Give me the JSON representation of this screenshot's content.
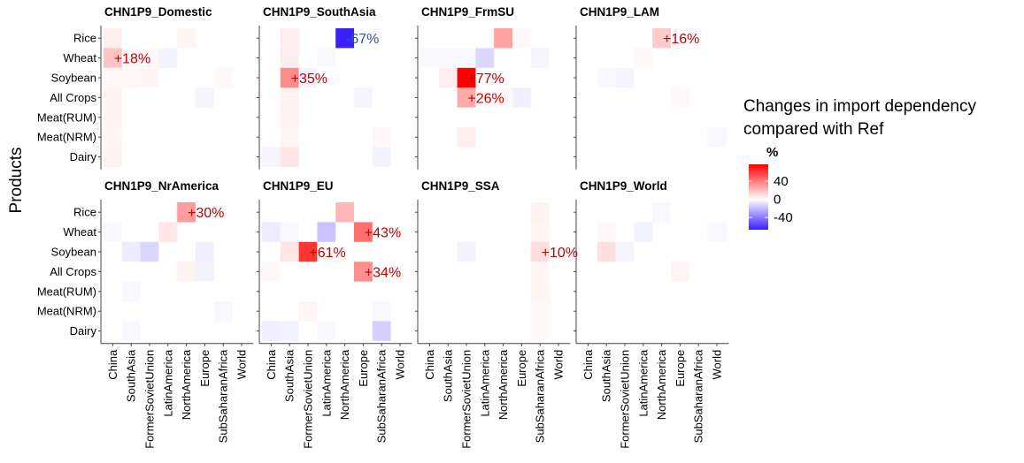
{
  "chart_data": {
    "type": "heatmap",
    "y_axis_title": "Products",
    "products": [
      "Rice",
      "Wheat",
      "Soybean",
      "All Crops",
      "Meat(RUM)",
      "Meat(NRM)",
      "Dairy"
    ],
    "regions": [
      "China",
      "SouthAsia",
      "FormerSovietUnion",
      "LatinAmerica",
      "NorthAmerica",
      "Europe",
      "SubSaharanAfrica",
      "World"
    ],
    "legend": {
      "title_line1": "Changes in import dependency",
      "title_line2": "compared with Ref",
      "unit": "%",
      "ticks": [
        "40",
        "0",
        "-40"
      ],
      "tick_values": [
        40,
        0,
        -40
      ],
      "range": [
        -67,
        77
      ],
      "high_color": "#ff0000",
      "mid_color": "#ffffff",
      "low_color": "#3a1fff"
    },
    "label_colors": {
      "positive": "#c00000",
      "negative": "#2f55a4"
    },
    "panels": [
      {
        "title": "CHN1P9_Domestic",
        "values": [
          [
            5,
            0,
            0,
            0,
            3,
            0,
            0,
            0
          ],
          [
            18,
            2,
            2,
            -4,
            0,
            0,
            0,
            0
          ],
          [
            2,
            2,
            3,
            0,
            0,
            0,
            2,
            0
          ],
          [
            4,
            0,
            0,
            0,
            0,
            -3,
            0,
            0
          ],
          [
            4,
            0,
            0,
            0,
            0,
            0,
            0,
            0
          ],
          [
            3,
            0,
            0,
            0,
            0,
            0,
            0,
            0
          ],
          [
            4,
            0,
            0,
            0,
            0,
            0,
            0,
            0
          ]
        ],
        "labels": [
          {
            "product": "Wheat",
            "region": "China",
            "text": "+18%"
          }
        ]
      },
      {
        "title": "CHN1P9_SouthAsia",
        "values": [
          [
            0,
            5,
            0,
            0,
            -67,
            0,
            0,
            0
          ],
          [
            0,
            5,
            0,
            -2,
            0,
            0,
            0,
            0
          ],
          [
            0,
            35,
            -4,
            0,
            0,
            0,
            0,
            0
          ],
          [
            0,
            4,
            0,
            0,
            0,
            -3,
            0,
            0
          ],
          [
            0,
            4,
            0,
            0,
            0,
            0,
            0,
            0
          ],
          [
            0,
            3,
            0,
            0,
            0,
            0,
            2,
            0
          ],
          [
            -3,
            8,
            0,
            0,
            0,
            0,
            -4,
            0
          ]
        ],
        "labels": [
          {
            "product": "Rice",
            "region": "NorthAmerica",
            "text": "-67%"
          },
          {
            "product": "Soybean",
            "region": "SouthAsia",
            "text": "+35%"
          }
        ]
      },
      {
        "title": "CHN1P9_FrmSU",
        "values": [
          [
            0,
            0,
            0,
            0,
            28,
            2,
            0,
            0
          ],
          [
            -2,
            -2,
            -2,
            -12,
            0,
            0,
            -3,
            0
          ],
          [
            0,
            5,
            77,
            0,
            0,
            0,
            0,
            0
          ],
          [
            0,
            0,
            26,
            0,
            2,
            -5,
            0,
            0
          ],
          [
            0,
            0,
            0,
            0,
            0,
            0,
            0,
            0
          ],
          [
            0,
            0,
            5,
            0,
            0,
            0,
            0,
            0
          ],
          [
            0,
            0,
            0,
            0,
            0,
            0,
            0,
            0
          ]
        ],
        "labels": [
          {
            "product": "Soybean",
            "region": "FormerSovietUnion",
            "text": "+77%"
          },
          {
            "product": "All Crops",
            "region": "FormerSovietUnion",
            "text": "+26%"
          }
        ]
      },
      {
        "title": "CHN1P9_LAM",
        "values": [
          [
            0,
            0,
            0,
            0,
            16,
            0,
            0,
            0
          ],
          [
            0,
            0,
            0,
            2,
            0,
            0,
            0,
            0
          ],
          [
            0,
            -2,
            -3,
            0,
            0,
            0,
            0,
            0
          ],
          [
            0,
            0,
            0,
            0,
            0,
            2,
            0,
            0
          ],
          [
            0,
            0,
            0,
            0,
            0,
            0,
            0,
            0
          ],
          [
            0,
            0,
            0,
            0,
            0,
            0,
            0,
            -2
          ],
          [
            0,
            0,
            0,
            0,
            0,
            0,
            0,
            0
          ]
        ],
        "labels": [
          {
            "product": "Rice",
            "region": "NorthAmerica",
            "text": "+16%"
          }
        ]
      },
      {
        "title": "CHN1P9_NrAmerica",
        "values": [
          [
            0,
            0,
            0,
            0,
            30,
            0,
            0,
            0
          ],
          [
            -2,
            0,
            0,
            8,
            0,
            0,
            0,
            0
          ],
          [
            0,
            -6,
            -12,
            0,
            0,
            -5,
            0,
            0
          ],
          [
            0,
            0,
            0,
            0,
            4,
            -4,
            0,
            0
          ],
          [
            0,
            -2,
            0,
            0,
            0,
            0,
            0,
            0
          ],
          [
            0,
            0,
            0,
            0,
            0,
            0,
            -2,
            0
          ],
          [
            0,
            -2,
            0,
            0,
            0,
            0,
            0,
            0
          ]
        ],
        "labels": [
          {
            "product": "Rice",
            "region": "NorthAmerica",
            "text": "+30%"
          }
        ]
      },
      {
        "title": "CHN1P9_EU",
        "values": [
          [
            0,
            0,
            0,
            0,
            22,
            0,
            0,
            0
          ],
          [
            -6,
            -2,
            0,
            -18,
            0,
            43,
            0,
            0
          ],
          [
            0,
            8,
            61,
            0,
            0,
            0,
            0,
            0
          ],
          [
            2,
            0,
            0,
            0,
            0,
            34,
            0,
            0
          ],
          [
            0,
            0,
            0,
            0,
            0,
            0,
            0,
            0
          ],
          [
            0,
            0,
            3,
            0,
            0,
            0,
            -2,
            0
          ],
          [
            -5,
            -4,
            0,
            -2,
            0,
            0,
            -14,
            0
          ]
        ],
        "labels": [
          {
            "product": "Wheat",
            "region": "Europe",
            "text": "+43%"
          },
          {
            "product": "Soybean",
            "region": "FormerSovietUnion",
            "text": "+61%"
          },
          {
            "product": "All Crops",
            "region": "Europe",
            "text": "+34%"
          }
        ]
      },
      {
        "title": "CHN1P9_SSA",
        "values": [
          [
            0,
            0,
            0,
            0,
            0,
            0,
            4,
            0
          ],
          [
            0,
            0,
            0,
            0,
            0,
            0,
            3,
            0
          ],
          [
            0,
            0,
            -4,
            0,
            0,
            0,
            10,
            0
          ],
          [
            0,
            0,
            0,
            0,
            0,
            0,
            3,
            0
          ],
          [
            0,
            0,
            0,
            0,
            0,
            0,
            3,
            0
          ],
          [
            0,
            0,
            0,
            0,
            0,
            0,
            2,
            0
          ],
          [
            0,
            0,
            0,
            0,
            0,
            0,
            2,
            0
          ]
        ],
        "labels": [
          {
            "product": "Soybean",
            "region": "SubSaharanAfrica",
            "text": "+10%"
          }
        ]
      },
      {
        "title": "CHN1P9_World",
        "values": [
          [
            0,
            0,
            0,
            0,
            -2,
            0,
            0,
            0
          ],
          [
            0,
            2,
            0,
            -4,
            0,
            0,
            0,
            -2
          ],
          [
            0,
            10,
            -3,
            0,
            0,
            0,
            0,
            0
          ],
          [
            0,
            0,
            0,
            0,
            0,
            3,
            0,
            0
          ],
          [
            0,
            0,
            0,
            0,
            0,
            0,
            0,
            0
          ],
          [
            0,
            0,
            0,
            0,
            0,
            0,
            0,
            0
          ],
          [
            0,
            0,
            0,
            0,
            0,
            0,
            0,
            0
          ]
        ],
        "labels": []
      }
    ]
  }
}
